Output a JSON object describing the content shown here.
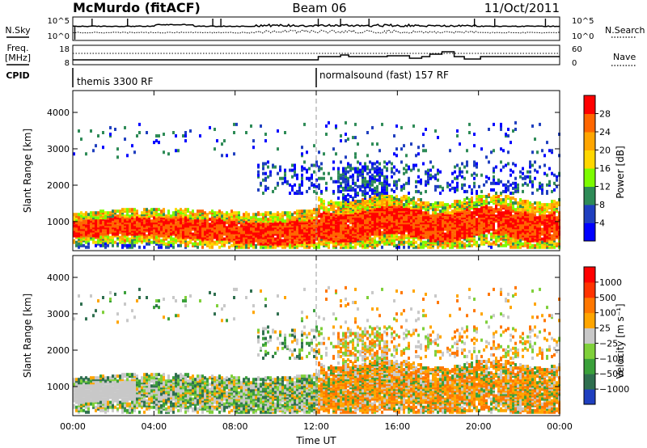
{
  "header": {
    "station": "McMurdo (fitACF)",
    "beam": "Beam 06",
    "date": "11/Oct/2011"
  },
  "colors": {
    "power_scale": [
      "#0000ff",
      "#1f3fbf",
      "#2e8b57",
      "#7cfc00",
      "#ffd700",
      "#ffa500",
      "#ff6600",
      "#ff0000"
    ],
    "velocity_scale": [
      "#1f3fbf",
      "#2f6f4f",
      "#3aa03a",
      "#7fd03a",
      "#c8c8c8",
      "#ffa500",
      "#ff7700",
      "#ff3300",
      "#ff0000"
    ]
  },
  "chart_data": [
    {
      "type": "line",
      "name": "summary-nsky-nsearch",
      "left_label": "N.Sky",
      "left_ticks": [
        "10^5",
        "10^0"
      ],
      "right_ticks": [
        "10^5",
        "10^0"
      ],
      "right_label": "N.Search",
      "series": [
        {
          "name": "N.Sky",
          "style": "solid"
        },
        {
          "name": "N.Search",
          "style": "dotted"
        }
      ]
    },
    {
      "type": "line",
      "name": "summary-freq-nave",
      "left_label_1": "Freq.",
      "left_label_2": "[MHz]",
      "left_ticks": [
        "18",
        "8"
      ],
      "right_ticks": [
        "60",
        "0"
      ],
      "right_label": "Nave",
      "cpid_label": "CPID",
      "cpid_modes": [
        {
          "label": "themis 3300 RF",
          "start_h": 0,
          "end_h": 12
        },
        {
          "label": "normalsound (fast) 157 RF",
          "start_h": 12,
          "end_h": 24
        }
      ]
    },
    {
      "type": "heatmap",
      "name": "power",
      "ylabel": "Slant Range [km]",
      "ylim": [
        200,
        4600
      ],
      "yticks": [
        1000,
        2000,
        3000,
        4000
      ],
      "xlim": [
        0,
        24
      ],
      "xticks": [
        "00:00",
        "04:00",
        "08:00",
        "12:00",
        "16:00",
        "20:00",
        "00:00"
      ],
      "colorbar_label": "Power [dB]",
      "colorbar_ticks": [
        "28",
        "24",
        "20",
        "16",
        "12",
        "8",
        "4"
      ]
    },
    {
      "type": "heatmap",
      "name": "velocity",
      "ylabel": "Slant Range [km]",
      "ylim": [
        200,
        4600
      ],
      "yticks": [
        1000,
        2000,
        3000,
        4000
      ],
      "xlim": [
        0,
        24
      ],
      "xticks": [
        "00:00",
        "04:00",
        "08:00",
        "12:00",
        "16:00",
        "20:00",
        "00:00"
      ],
      "xlabel": "Time UT",
      "colorbar_label": "Velocity [m s⁻¹]",
      "colorbar_ticks": [
        "1000",
        "500",
        "100",
        "25",
        "−25",
        "−100",
        "−500",
        "−1000"
      ]
    }
  ]
}
